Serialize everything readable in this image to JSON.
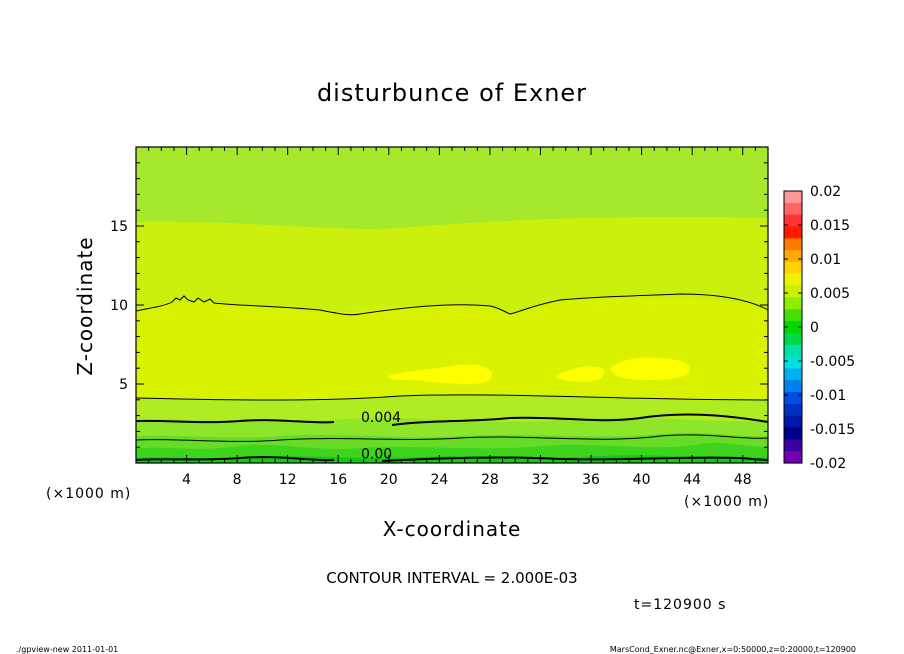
{
  "chart_data": {
    "type": "heatmap",
    "title": "disturbunce of Exner",
    "xlabel": "X-coordinate",
    "ylabel": "Z-coordinate",
    "x_unit": "(×1000 m)",
    "y_unit": "(×1000 m)",
    "xlim": [
      0,
      50
    ],
    "ylim": [
      0,
      20
    ],
    "x_ticks": [
      4,
      8,
      12,
      16,
      20,
      24,
      28,
      32,
      36,
      40,
      44,
      48
    ],
    "y_ticks": [
      5,
      10,
      15
    ],
    "contour_labels": [
      {
        "text": "0.004",
        "x": 17.8,
        "z": 2.6
      },
      {
        "text": "0.00",
        "x": 17.8,
        "z": 0.3
      }
    ],
    "contour_interval_text": "CONTOUR INTERVAL = 2.000E-03",
    "time_text": "t=120900 s",
    "colorbar": {
      "range": [
        -0.02,
        0.02
      ],
      "tick_labels": [
        "0.02",
        "0.015",
        "0.01",
        "0.005",
        "0",
        "-0.005",
        "-0.01",
        "-0.015",
        "-0.02"
      ],
      "tick_values": [
        0.02,
        0.015,
        0.01,
        0.005,
        0,
        -0.005,
        -0.01,
        -0.015,
        -0.02
      ],
      "colors_top_to_bottom": [
        "#ff9999",
        "#ff6666",
        "#ff3333",
        "#ff1a00",
        "#ff7a00",
        "#ffaa00",
        "#ffd200",
        "#eef200",
        "#c8f000",
        "#8cee00",
        "#44e000",
        "#00d800",
        "#00d84a",
        "#00e0a8",
        "#00e0e0",
        "#00b0f0",
        "#0080f0",
        "#0050e0",
        "#0030c0",
        "#0018a8",
        "#00008c",
        "#3a00a0",
        "#7000b0"
      ]
    },
    "bands_bottom_to_top": [
      {
        "color": "#14c814"
      },
      {
        "color": "#3ed41e"
      },
      {
        "color": "#66dc26"
      },
      {
        "color": "#8ee62a"
      },
      {
        "color": "#b0ec22"
      },
      {
        "color": "#ccf00e"
      },
      {
        "color": "#d8f200"
      },
      {
        "color": "#a6e82c"
      }
    ]
  },
  "footer": {
    "left": "./gpview-new  2011-01-01",
    "right": "MarsCond_Exner.nc@Exner,x=0:50000,z=0:20000,t=120900"
  }
}
